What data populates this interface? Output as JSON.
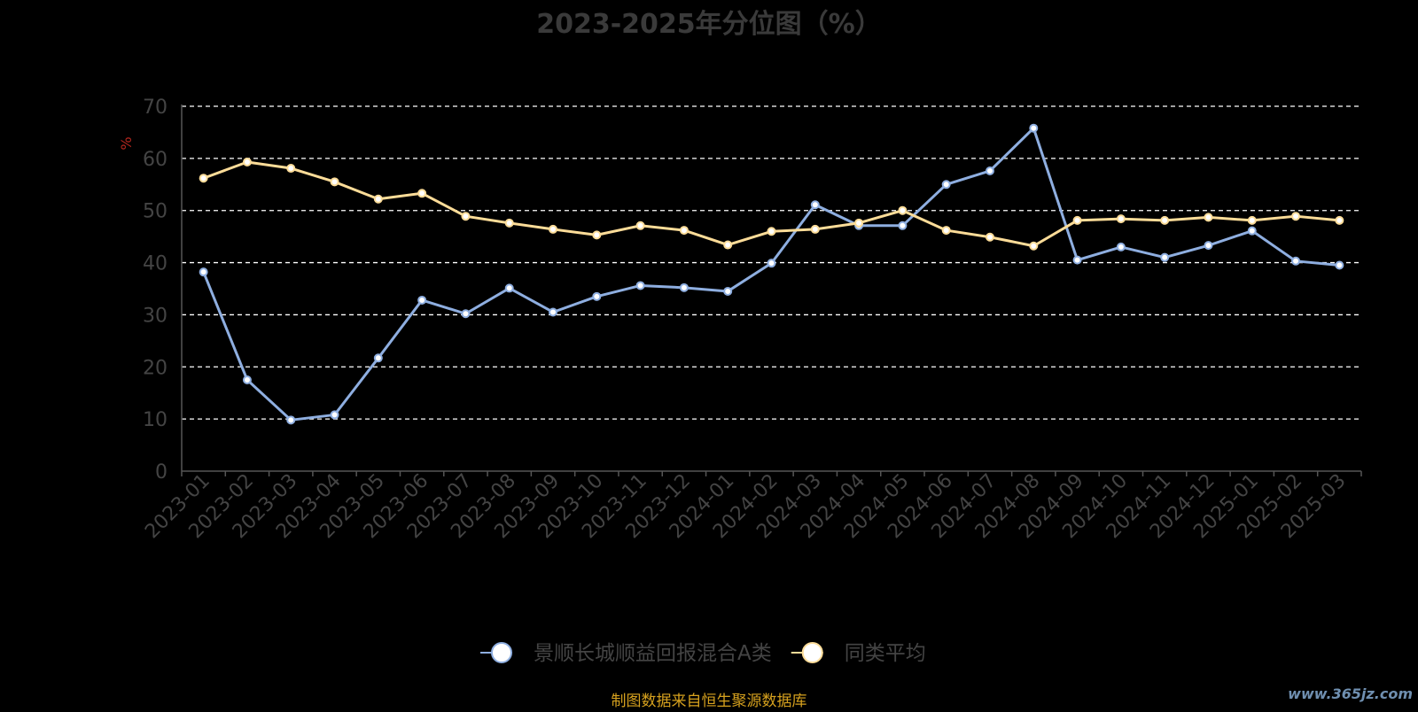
{
  "footer": "制图数据来自恒生聚源数据库",
  "watermark": "www.365jz.com",
  "colors": {
    "series_a": "#8eaee0",
    "series_b": "#fcdc98",
    "axis": "#555555",
    "grid": "#ffffff",
    "tick_text": "#444444",
    "ylabel": "#b3261e"
  },
  "chart_data": {
    "type": "line",
    "title": "2023-2025年分位图（%）",
    "ylabel": "%",
    "xlabel": "",
    "ylim": [
      0,
      70
    ],
    "yticks": [
      0,
      10,
      20,
      30,
      40,
      50,
      60,
      70
    ],
    "grid": true,
    "legend_position": "bottom-center",
    "categories": [
      "2023-01",
      "2023-02",
      "2023-03",
      "2023-04",
      "2023-05",
      "2023-06",
      "2023-07",
      "2023-08",
      "2023-09",
      "2023-10",
      "2023-11",
      "2023-12",
      "2024-01",
      "2024-02",
      "2024-03",
      "2024-04",
      "2024-05",
      "2024-06",
      "2024-07",
      "2024-08",
      "2024-09",
      "2024-10",
      "2024-11",
      "2024-12",
      "2025-01",
      "2025-02",
      "2025-03"
    ],
    "series": [
      {
        "name": "景顺长城顺益回报混合A类",
        "values": [
          38.2,
          17.5,
          9.8,
          10.8,
          21.7,
          32.8,
          30.2,
          35.1,
          30.5,
          33.5,
          35.6,
          35.2,
          34.5,
          39.9,
          51.1,
          47.1,
          47.1,
          55.0,
          57.6,
          65.8,
          40.5,
          43.0,
          41.0,
          43.3,
          46.1,
          40.3,
          39.5
        ]
      },
      {
        "name": "同类平均",
        "values": [
          56.2,
          59.3,
          58.1,
          55.5,
          52.2,
          53.3,
          48.9,
          47.6,
          46.4,
          45.3,
          47.1,
          46.2,
          43.4,
          46.0,
          46.4,
          47.6,
          50.0,
          46.2,
          44.9,
          43.2,
          48.1,
          48.4,
          48.1,
          48.7,
          48.1,
          48.9,
          48.1
        ]
      }
    ]
  }
}
